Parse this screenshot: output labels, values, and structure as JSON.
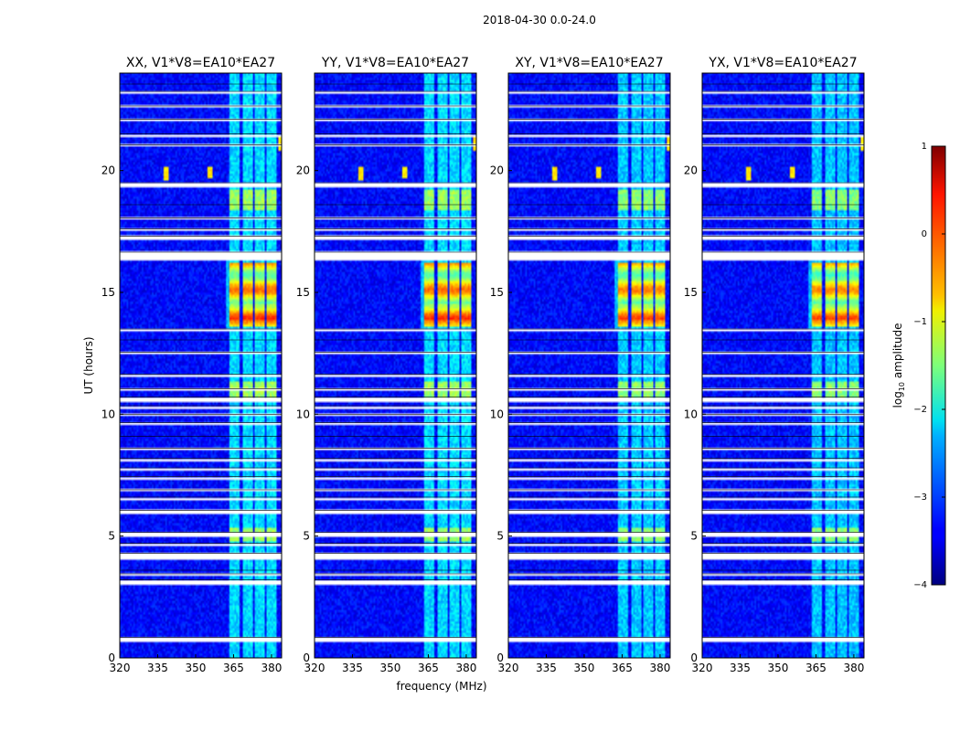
{
  "figure_title": "2018-04-30 0.0-24.0",
  "xlabel": "frequency (MHz)",
  "ylabel": "UT (hours)",
  "colorbar": {
    "label": "log",
    "label_sub": "10",
    "label_rest": " amplitude",
    "range": [
      -4,
      1
    ],
    "ticks": [
      "1",
      "0",
      "−1",
      "−2",
      "−3",
      "−4"
    ],
    "tick_values": [
      1,
      0,
      -1,
      -2,
      -3,
      -4
    ],
    "colormap": "jet"
  },
  "chart_data": {
    "type": "heatmap",
    "title": "2018-04-30 0.0-24.0",
    "xlabel": "frequency (MHz)",
    "ylabel": "UT (hours)",
    "xlim": [
      320,
      384
    ],
    "ylim": [
      0,
      24
    ],
    "x_ticks": [
      320,
      335,
      350,
      365,
      380
    ],
    "x_tick_labels": [
      "320",
      "335",
      "350",
      "365",
      "380"
    ],
    "y_ticks": [
      0,
      5,
      10,
      15,
      20
    ],
    "y_tick_labels": [
      "0",
      "5",
      "10",
      "15",
      "20"
    ],
    "value_label": "log10 amplitude",
    "value_range": [
      -4,
      1
    ],
    "panels": [
      {
        "title": "XX, V1*V8=EA10*EA27",
        "strength": 1.0
      },
      {
        "title": "YY, V1*V8=EA10*EA27",
        "strength": 1.0
      },
      {
        "title": "XY, V1*V8=EA10*EA27",
        "strength": 0.9
      },
      {
        "title": "YX, V1*V8=EA10*EA27",
        "strength": 0.85
      }
    ],
    "rfi_bands_mhz": [
      [
        363.5,
        367.5
      ],
      [
        368.5,
        372.5
      ],
      [
        373.5,
        377
      ],
      [
        378,
        382
      ]
    ],
    "narrowband_sources": [
      {
        "freq_mhz": 338.5,
        "t_start": 19.6,
        "t_end": 20.2
      },
      {
        "freq_mhz": 355.5,
        "t_start": 19.7,
        "t_end": 20.2
      },
      {
        "freq_mhz": 383.5,
        "t_start": 20.8,
        "t_end": 21.4
      }
    ],
    "strong_rfi_interval_hours": [
      13.6,
      16.2
    ],
    "medium_rfi_intervals_hours": [
      [
        18.4,
        19.2
      ],
      [
        10.7,
        11.3
      ],
      [
        4.8,
        5.3
      ]
    ],
    "flagged_intervals_hours": [
      [
        0.65,
        0.85
      ],
      [
        3.0,
        3.2
      ],
      [
        3.35,
        3.45
      ],
      [
        3.55,
        3.6
      ],
      [
        4.0,
        4.3
      ],
      [
        4.6,
        4.7
      ],
      [
        4.95,
        5.15
      ],
      [
        5.9,
        6.05
      ],
      [
        6.5,
        6.6
      ],
      [
        6.85,
        6.9
      ],
      [
        7.35,
        7.45
      ],
      [
        7.7,
        7.8
      ],
      [
        8.05,
        8.2
      ],
      [
        8.5,
        8.6
      ],
      [
        9.05,
        9.1
      ],
      [
        9.55,
        9.65
      ],
      [
        9.9,
        10.0
      ],
      [
        10.25,
        10.35
      ],
      [
        10.5,
        10.7
      ],
      [
        10.95,
        11.05
      ],
      [
        11.55,
        11.65
      ],
      [
        12.45,
        12.55
      ],
      [
        13.0,
        13.05
      ],
      [
        13.4,
        13.5
      ],
      [
        16.35,
        16.65
      ],
      [
        17.2,
        17.3
      ],
      [
        17.55,
        17.6
      ],
      [
        18.0,
        18.05
      ],
      [
        18.55,
        18.6
      ],
      [
        19.3,
        19.5
      ],
      [
        21.0,
        21.05
      ],
      [
        21.4,
        21.5
      ],
      [
        22.0,
        22.1
      ],
      [
        22.6,
        22.65
      ],
      [
        23.15,
        23.25
      ],
      [
        23.5,
        23.55
      ]
    ]
  }
}
